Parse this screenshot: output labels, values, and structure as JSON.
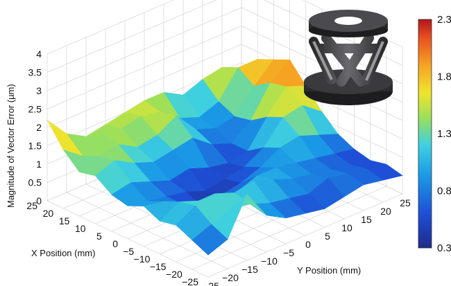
{
  "chart_data": {
    "type": "surface",
    "zlabel": "Magnitude of Vector Error (µm)",
    "xlabel": "X Position (mm)",
    "ylabel": "Y Position (mm)",
    "z_ticks": [
      "0",
      "0.5",
      "1",
      "1.5",
      "2",
      "2.5",
      "3",
      "3.5",
      "4"
    ],
    "x_ticks": [
      "25",
      "20",
      "15",
      "10",
      "5",
      "0",
      "−5",
      "−10",
      "−15",
      "−20",
      "−25"
    ],
    "y_ticks": [
      "−25",
      "−20",
      "−15",
      "−10",
      "−5",
      "0",
      "5",
      "10",
      "15",
      "20",
      "25"
    ],
    "zlim": [
      0,
      4
    ],
    "xlim": [
      -25,
      25
    ],
    "ylim": [
      -25,
      25
    ],
    "colorbar": {
      "range": [
        0.3,
        2.3
      ],
      "ticks": [
        "2.3",
        "1.8",
        "1.3",
        "0.8",
        "0.3"
      ],
      "colormap": "jet"
    },
    "grid": true,
    "x_values": [
      25,
      20,
      15,
      10,
      5,
      0,
      -5,
      -10,
      -15,
      -20,
      -25
    ],
    "y_values": [
      -25,
      -20,
      -15,
      -10,
      -5,
      0,
      5,
      10,
      15,
      20,
      25
    ],
    "z_values": [
      [
        2.2,
        1.6,
        1.3,
        1.4,
        1.5,
        1.6,
        1.6,
        1.3,
        1.5,
        1.6,
        1.0
      ],
      [
        1.6,
        1.2,
        1.6,
        1.5,
        1.6,
        1.5,
        1.1,
        0.9,
        1.1,
        1.8,
        1.8
      ],
      [
        1.2,
        1.4,
        1.5,
        1.2,
        1.3,
        1.6,
        1.0,
        0.8,
        0.9,
        1.5,
        2.0
      ],
      [
        1.3,
        1.5,
        1.2,
        1.0,
        1.1,
        1.2,
        0.8,
        0.6,
        1.0,
        1.8,
        2.2
      ],
      [
        1.0,
        1.1,
        0.9,
        0.7,
        0.8,
        0.6,
        0.5,
        0.6,
        1.3,
        1.9,
        1.7
      ],
      [
        0.9,
        0.8,
        0.7,
        0.6,
        0.4,
        0.5,
        0.6,
        0.9,
        1.5,
        1.6,
        1.2
      ],
      [
        1.1,
        1.0,
        0.7,
        0.4,
        0.5,
        0.6,
        0.8,
        1.1,
        1.2,
        1.0,
        0.8
      ],
      [
        0.9,
        1.2,
        1.0,
        0.6,
        0.8,
        1.0,
        1.0,
        0.9,
        0.8,
        0.7,
        0.6
      ],
      [
        1.0,
        1.3,
        1.4,
        1.2,
        1.3,
        1.1,
        0.9,
        0.8,
        0.7,
        0.6,
        0.5
      ],
      [
        0.8,
        1.0,
        1.2,
        1.1,
        0.9,
        0.8,
        0.7,
        0.9,
        0.8,
        0.7,
        0.6
      ],
      [
        0.6,
        0.8,
        1.8,
        1.0,
        0.7,
        0.6,
        0.5,
        0.6,
        0.7,
        0.6,
        0.5
      ]
    ]
  },
  "inset": {
    "icon": "hexapod-stage-icon"
  }
}
